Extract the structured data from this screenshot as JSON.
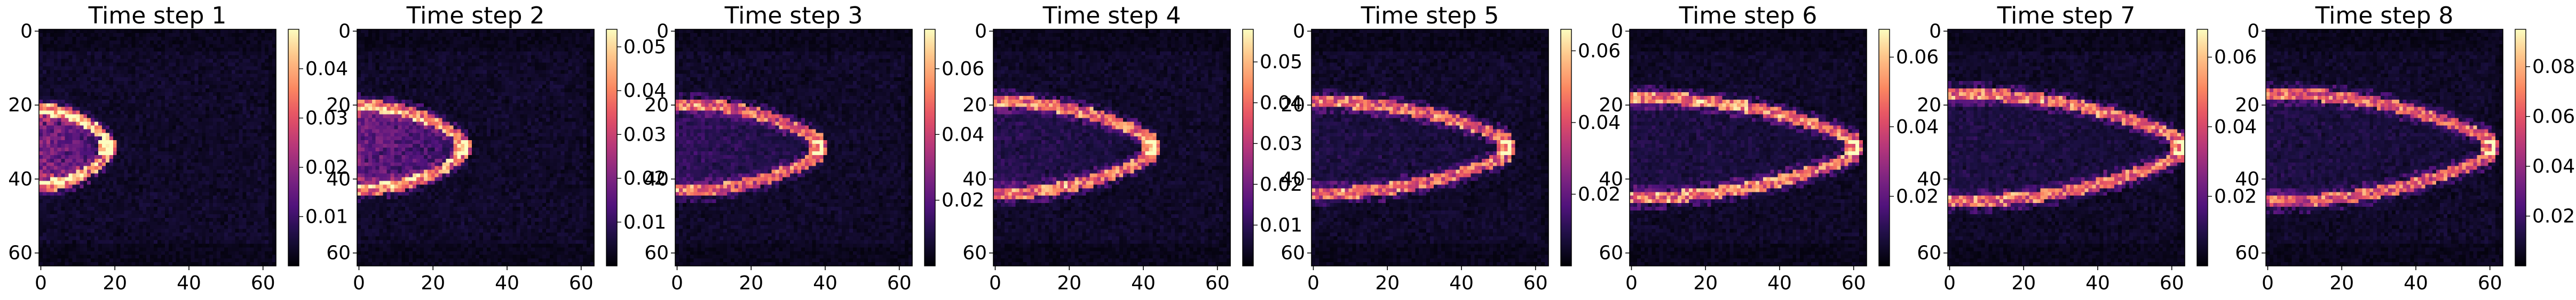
{
  "chart_data": {
    "type": "heatmap",
    "colormap": "magma",
    "grid": false,
    "x_ticks": [
      "0",
      "20",
      "40",
      "60"
    ],
    "y_ticks": [
      "0",
      "20",
      "40",
      "60"
    ],
    "xlim": [
      -0.5,
      63.5
    ],
    "ylim": [
      63.5,
      -0.5
    ],
    "panels": [
      {
        "title": "Time step 1",
        "vmin": 0.0,
        "vmax": 0.048,
        "colorbar_ticks": [
          "0.01",
          "0.02",
          "0.03",
          "0.04"
        ],
        "colorbar_values": [
          0.01,
          0.02,
          0.03,
          0.04
        ],
        "front": {
          "tip_x": 18,
          "spread": 14,
          "intensity": 0.9,
          "fill": 0.55
        }
      },
      {
        "title": "Time step 2",
        "vmin": 0.0,
        "vmax": 0.054,
        "colorbar_ticks": [
          "0.01",
          "0.02",
          "0.03",
          "0.04",
          "0.05"
        ],
        "colorbar_values": [
          0.01,
          0.02,
          0.03,
          0.04,
          0.05
        ],
        "front": {
          "tip_x": 28,
          "spread": 16,
          "intensity": 0.85,
          "fill": 0.45
        }
      },
      {
        "title": "Time step 3",
        "vmin": 0.0,
        "vmax": 0.072,
        "colorbar_ticks": [
          "0.02",
          "0.04",
          "0.06"
        ],
        "colorbar_values": [
          0.02,
          0.04,
          0.06
        ],
        "front": {
          "tip_x": 38,
          "spread": 17,
          "intensity": 0.75,
          "fill": 0.2
        }
      },
      {
        "title": "Time step 4",
        "vmin": 0.0,
        "vmax": 0.058,
        "colorbar_ticks": [
          "0.01",
          "0.02",
          "0.03",
          "0.04",
          "0.05"
        ],
        "colorbar_values": [
          0.01,
          0.02,
          0.03,
          0.04,
          0.05
        ],
        "front": {
          "tip_x": 42,
          "spread": 18,
          "intensity": 0.8,
          "fill": 0.15
        }
      },
      {
        "title": "Time step 5",
        "vmin": 0.0,
        "vmax": 0.066,
        "colorbar_ticks": [
          "0.02",
          "0.04",
          "0.06"
        ],
        "colorbar_values": [
          0.02,
          0.04,
          0.06
        ],
        "front": {
          "tip_x": 52,
          "spread": 18,
          "intensity": 0.8,
          "fill": 0.1
        }
      },
      {
        "title": "Time step 6",
        "vmin": 0.0,
        "vmax": 0.068,
        "colorbar_ticks": [
          "0.02",
          "0.04",
          "0.06"
        ],
        "colorbar_values": [
          0.02,
          0.04,
          0.06
        ],
        "front": {
          "tip_x": 60,
          "spread": 20,
          "intensity": 0.85,
          "fill": 0.1
        }
      },
      {
        "title": "Time step 7",
        "vmin": 0.0,
        "vmax": 0.068,
        "colorbar_ticks": [
          "0.02",
          "0.04",
          "0.06"
        ],
        "colorbar_values": [
          0.02,
          0.04,
          0.06
        ],
        "front": {
          "tip_x": 62,
          "spread": 22,
          "intensity": 0.8,
          "fill": 0.1
        }
      },
      {
        "title": "Time step 8",
        "vmin": 0.0,
        "vmax": 0.095,
        "colorbar_ticks": [
          "0.02",
          "0.04",
          "0.06",
          "0.08"
        ],
        "colorbar_values": [
          0.02,
          0.04,
          0.06,
          0.08
        ],
        "front": {
          "tip_x": 60,
          "spread": 22,
          "intensity": 0.75,
          "fill": 0.1
        }
      }
    ]
  }
}
